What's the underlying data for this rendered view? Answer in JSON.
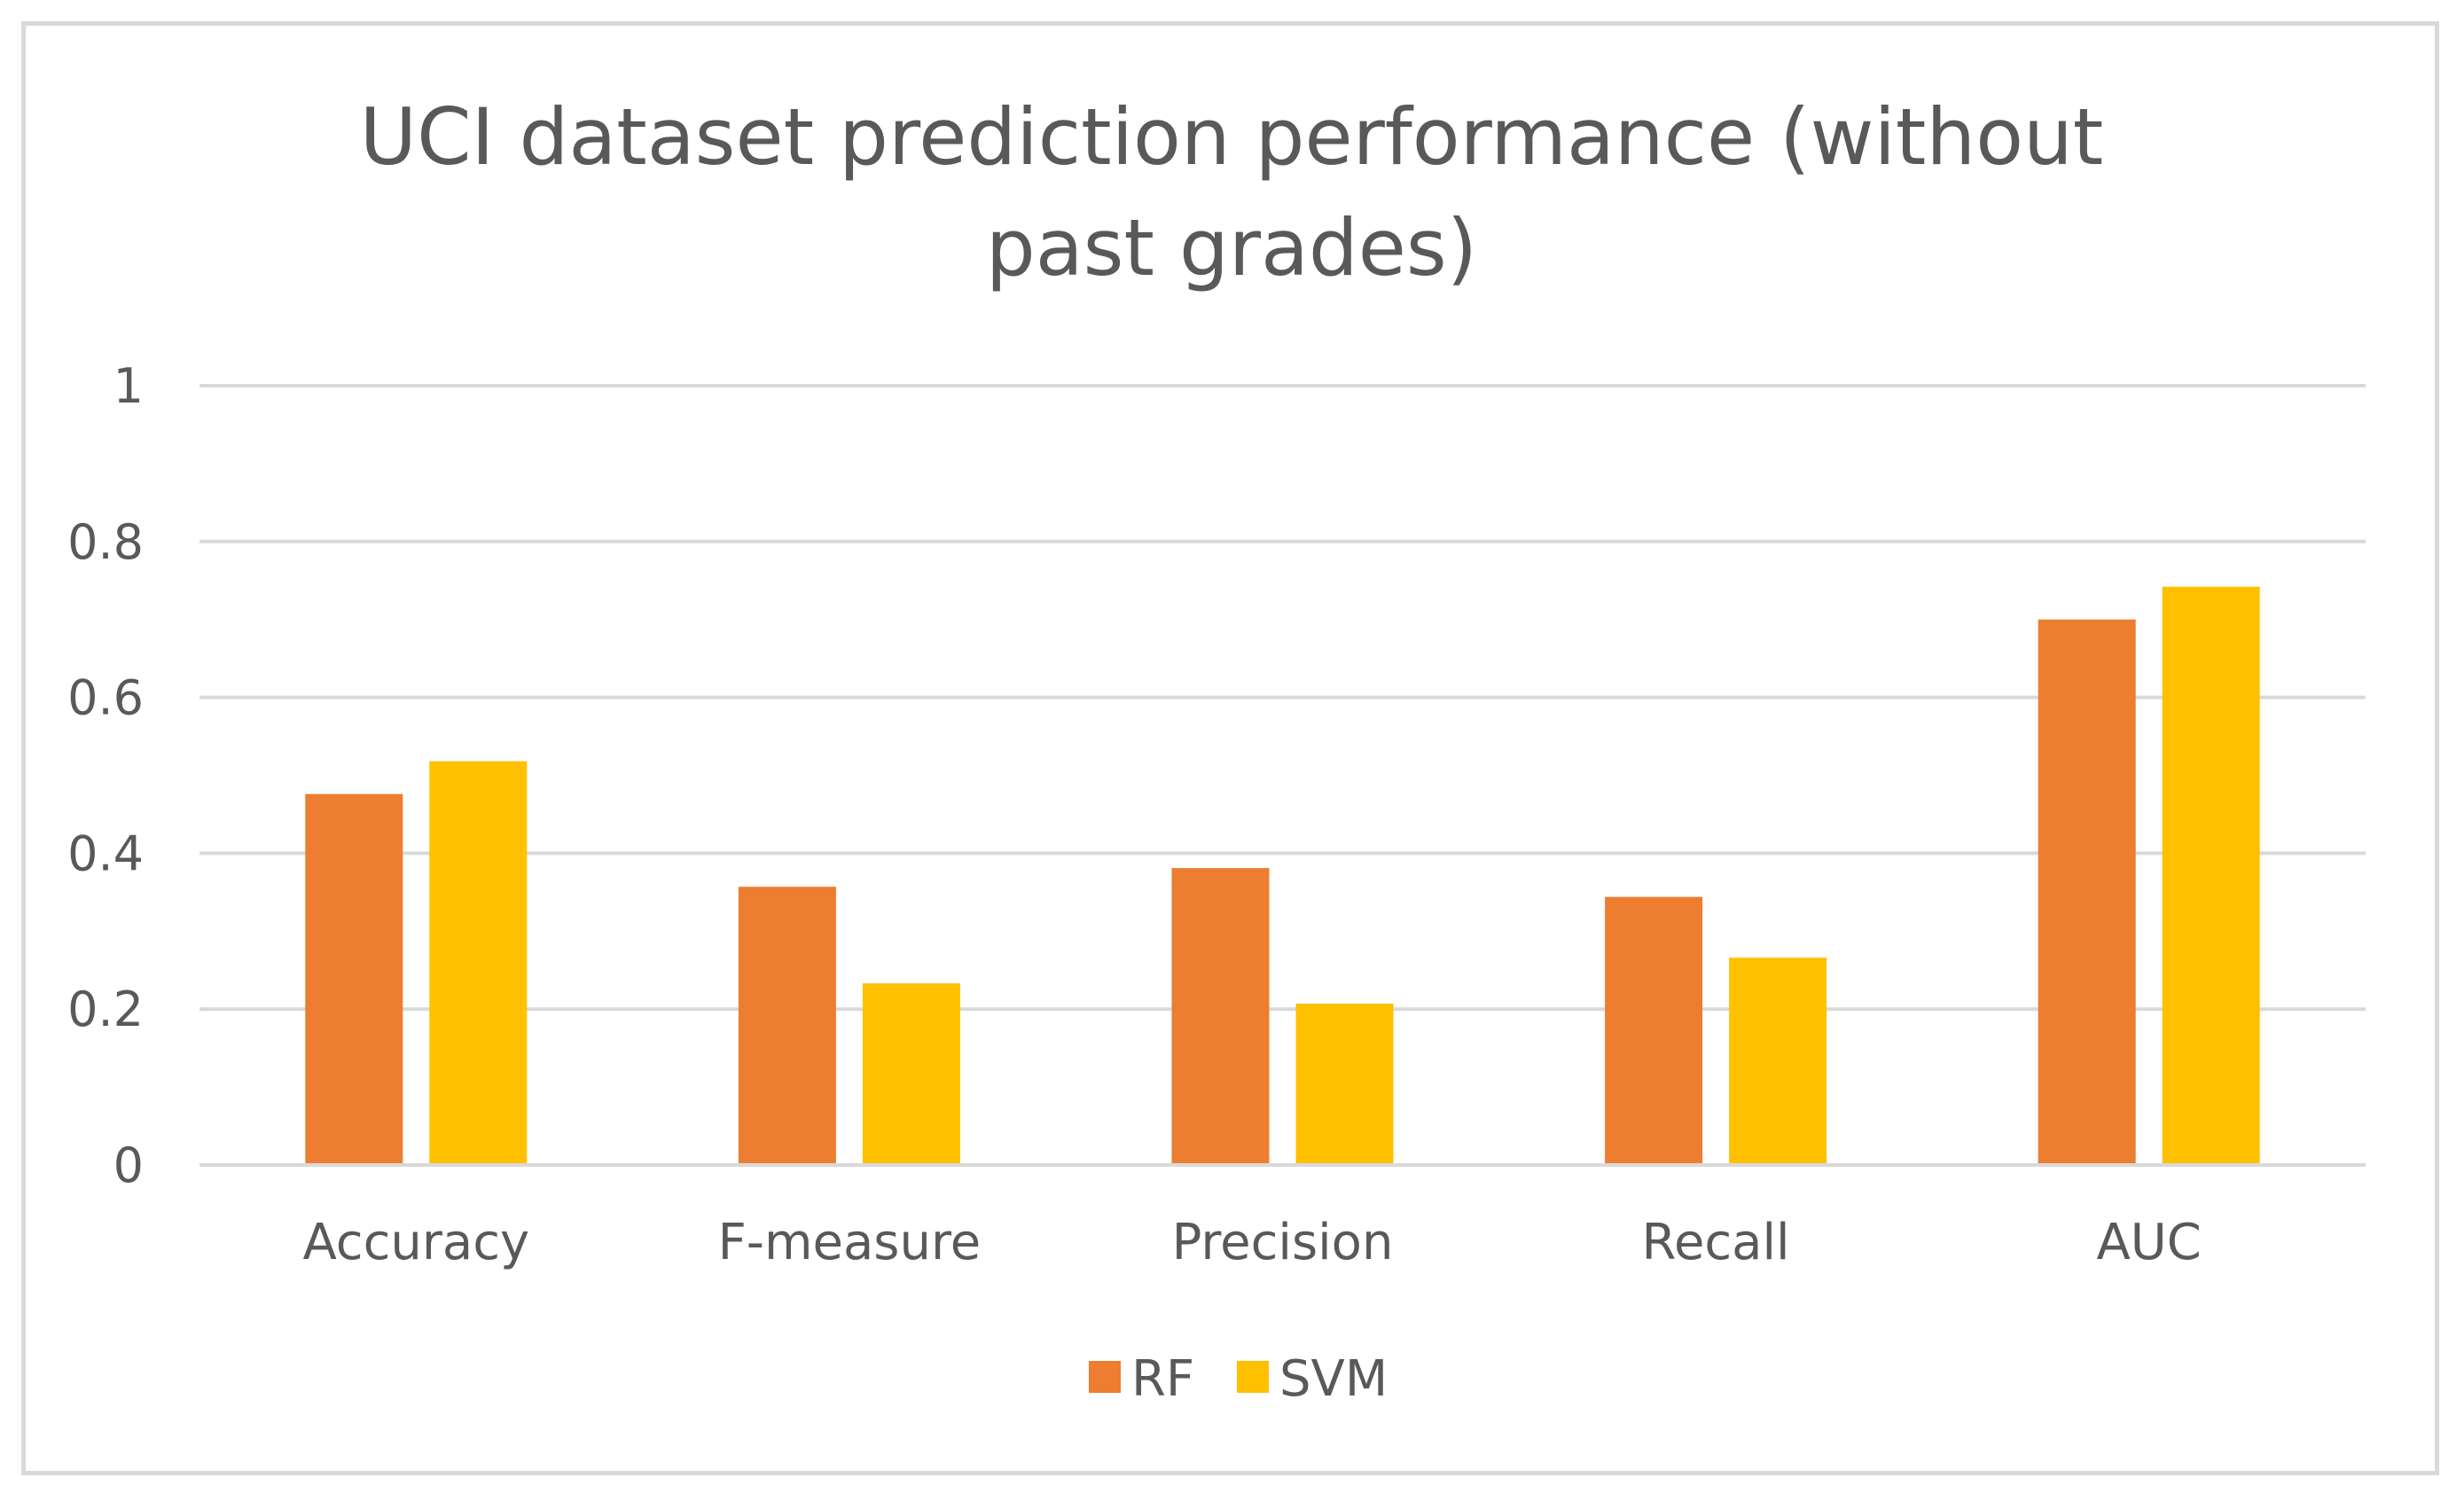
{
  "chart_data": {
    "type": "bar",
    "title_lines": [
      "UCI dataset prediction performance (without",
      "past grades)"
    ],
    "categories": [
      "Accuracy",
      "F-measure",
      "Precision",
      "Recall",
      "AUC"
    ],
    "series": [
      {
        "name": "RF",
        "color": "#ED7D31",
        "values": [
          0.476,
          0.357,
          0.381,
          0.344,
          0.7
        ]
      },
      {
        "name": "SVM",
        "color": "#FFC000",
        "values": [
          0.518,
          0.233,
          0.207,
          0.266,
          0.742
        ]
      }
    ],
    "ylim": [
      0,
      1
    ],
    "yticks": [
      0,
      0.2,
      0.4,
      0.6,
      0.8,
      1
    ],
    "ytick_labels": [
      "0",
      "0.2",
      "0.4",
      "0.6",
      "0.8",
      "1"
    ],
    "xlabel": "",
    "ylabel": "",
    "grid": true,
    "legend_position": "bottom",
    "colors": {
      "grid": "#d9d9d9",
      "text": "#595959",
      "border": "#d9d9d9"
    }
  }
}
